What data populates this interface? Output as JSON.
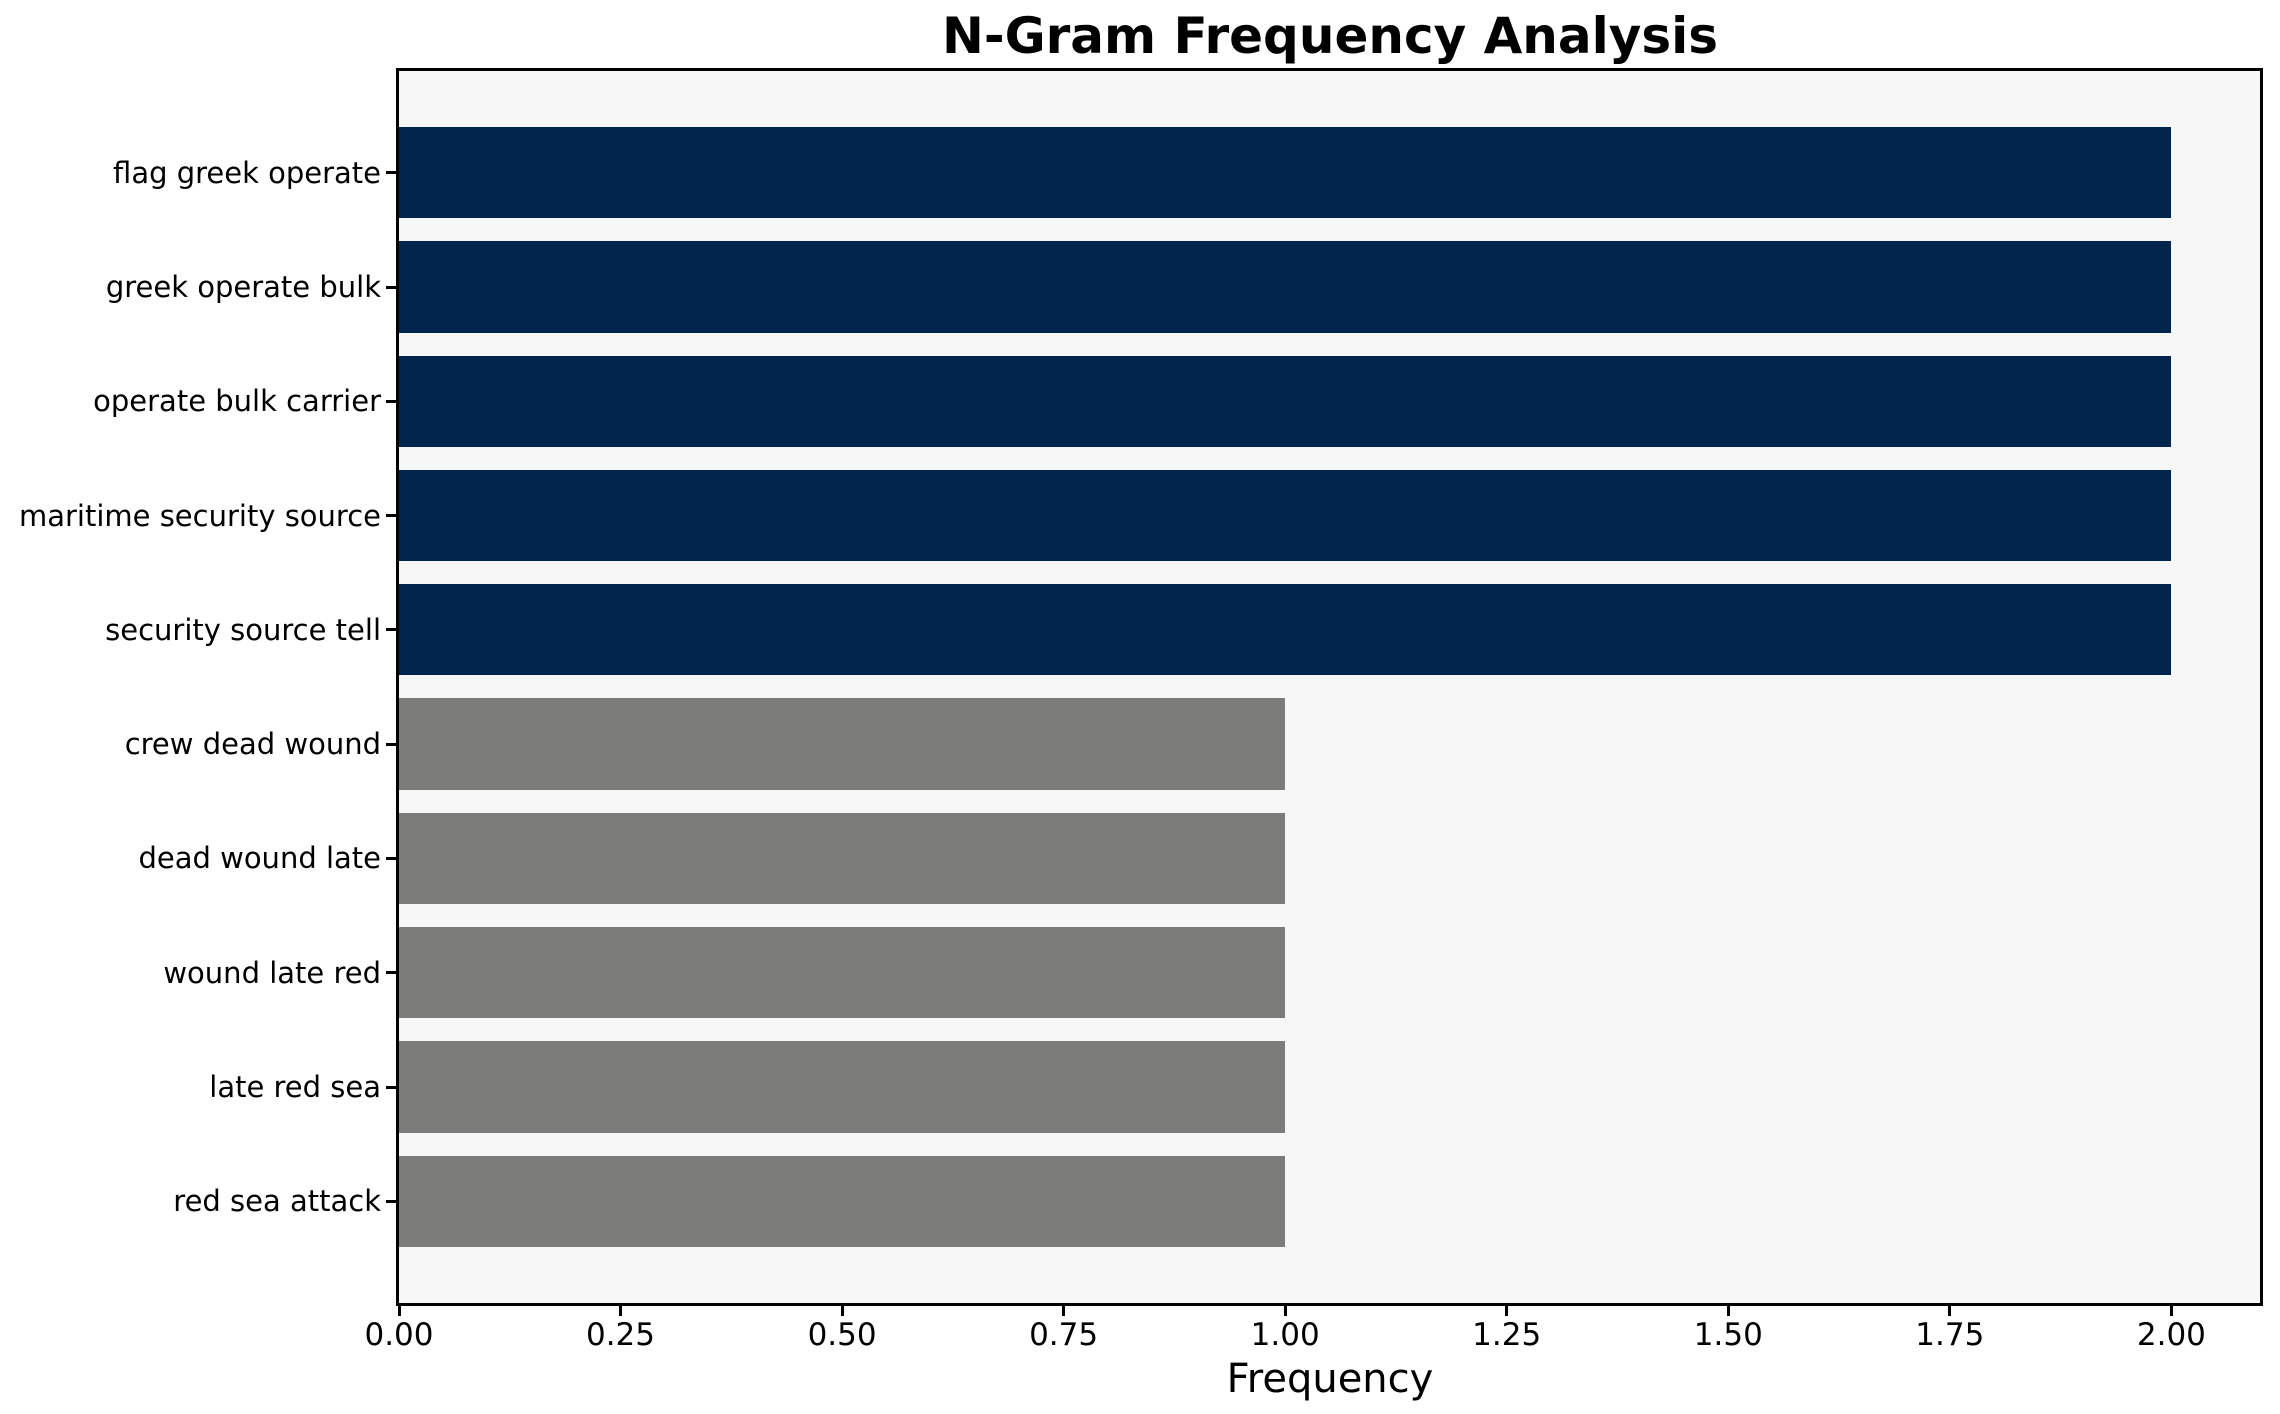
{
  "page": {
    "background": "#ffffff"
  },
  "chart_data": {
    "type": "bar",
    "orientation": "horizontal",
    "title": "N-Gram Frequency Analysis",
    "xlabel": "Frequency",
    "ylabel": "",
    "categories": [
      "flag greek operate",
      "greek operate bulk",
      "operate bulk carrier",
      "maritime security source",
      "security source tell",
      "crew dead wound",
      "dead wound late",
      "wound late red",
      "late red sea",
      "red sea attack"
    ],
    "values": [
      2,
      2,
      2,
      2,
      2,
      1,
      1,
      1,
      1,
      1
    ],
    "bar_colors": [
      "#02254e",
      "#02254e",
      "#02254e",
      "#02254e",
      "#02254e",
      "#7b7b79",
      "#7b7b79",
      "#7b7b79",
      "#7b7b79",
      "#7b7b79"
    ],
    "xlim": [
      0,
      2.1
    ],
    "xticks": [
      {
        "value": 0.0,
        "label": "0.00"
      },
      {
        "value": 0.25,
        "label": "0.25"
      },
      {
        "value": 0.5,
        "label": "0.50"
      },
      {
        "value": 0.75,
        "label": "0.75"
      },
      {
        "value": 1.0,
        "label": "1.00"
      },
      {
        "value": 1.25,
        "label": "1.25"
      },
      {
        "value": 1.5,
        "label": "1.50"
      },
      {
        "value": 1.75,
        "label": "1.75"
      },
      {
        "value": 2.0,
        "label": "2.00"
      }
    ],
    "grid": false,
    "legend": false,
    "bar_height_fraction": 0.8,
    "plot_background": "#f7f7f7",
    "spine_color": "#000000",
    "text_color": "#000000"
  }
}
